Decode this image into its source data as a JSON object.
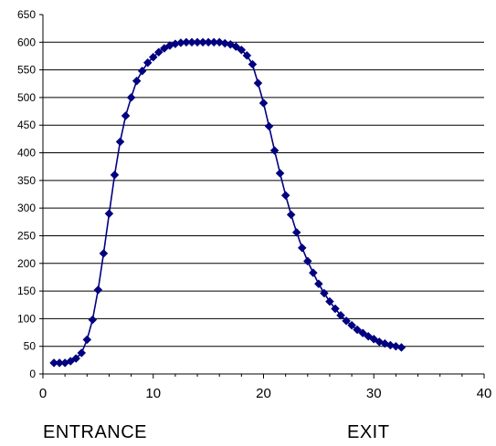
{
  "chart_data": {
    "type": "scatter",
    "title": "",
    "xlabel": "",
    "ylabel": "",
    "xlim": [
      0,
      40
    ],
    "ylim": [
      0,
      650
    ],
    "x_ticks": [
      0,
      10,
      20,
      30,
      40
    ],
    "y_ticks": [
      0,
      50,
      100,
      150,
      200,
      250,
      300,
      350,
      400,
      450,
      500,
      550,
      600,
      650
    ],
    "grid": "horizontal",
    "legend": "none",
    "series": [
      {
        "color": "#000080",
        "marker": "diamond",
        "x": [
          1.0,
          1.5,
          2.0,
          2.5,
          3.0,
          3.5,
          4.0,
          4.5,
          5.0,
          5.5,
          6.0,
          6.5,
          7.0,
          7.5,
          8.0,
          8.5,
          9.0,
          9.5,
          10.0,
          10.5,
          11.0,
          11.5,
          12.0,
          12.5,
          13.0,
          13.5,
          14.0,
          14.5,
          15.0,
          15.5,
          16.0,
          16.5,
          17.0,
          17.5,
          18.0,
          18.5,
          19.0,
          19.5,
          20.0,
          20.5,
          21.0,
          21.5,
          22.0,
          22.5,
          23.0,
          23.5,
          24.0,
          24.5,
          25.0,
          25.5,
          26.0,
          26.5,
          27.0,
          27.5,
          28.0,
          28.5,
          29.0,
          29.5,
          30.0,
          30.5,
          31.0,
          31.5,
          32.0,
          32.5
        ],
        "y": [
          20,
          20,
          20,
          23,
          28,
          38,
          62,
          98,
          152,
          218,
          290,
          360,
          420,
          467,
          500,
          530,
          548,
          563,
          573,
          582,
          589,
          594,
          597,
          599,
          600,
          600,
          600,
          600,
          600,
          600,
          600,
          598,
          596,
          592,
          586,
          576,
          560,
          526,
          490,
          448,
          404,
          363,
          323,
          288,
          256,
          228,
          204,
          183,
          163,
          146,
          131,
          118,
          106,
          96,
          88,
          80,
          74,
          68,
          63,
          58,
          55,
          52,
          50,
          48
        ]
      }
    ]
  },
  "labels": {
    "entrance": "ENTRANCE",
    "exit": "EXIT"
  }
}
